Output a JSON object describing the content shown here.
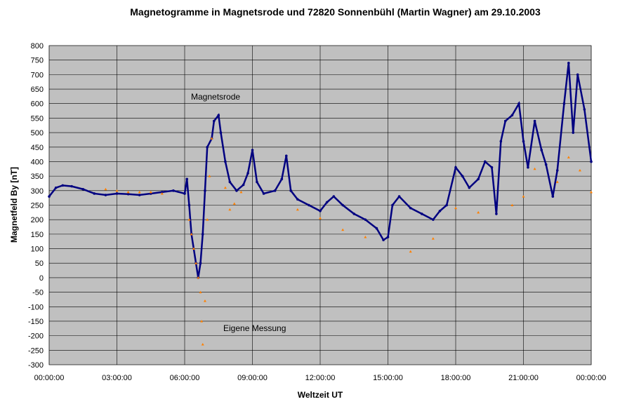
{
  "chart_data": {
    "type": "scatter",
    "title": "Magnetogramme in Magnetsrode und 72820 Sonnenbühl (Martin Wagner) am 29.10.2003",
    "xlabel": "Weltzeit UT",
    "ylabel": "Magnetfeld By [nT]",
    "xlim": [
      0,
      24
    ],
    "ylim": [
      -300,
      800
    ],
    "grid": true,
    "xticks": [
      0,
      3,
      6,
      9,
      12,
      15,
      18,
      21,
      24
    ],
    "xtick_labels": [
      "00:00:00",
      "03:00:00",
      "06:00:00",
      "09:00:00",
      "12:00:00",
      "15:00:00",
      "18:00:00",
      "21:00:00",
      "00:00:00"
    ],
    "yticks": [
      -300,
      -250,
      -200,
      -150,
      -100,
      -50,
      0,
      50,
      100,
      150,
      200,
      250,
      300,
      350,
      400,
      450,
      500,
      550,
      600,
      650,
      700,
      750,
      800
    ],
    "series": [
      {
        "name": "Magnetsrode",
        "color": "#000080",
        "x": [
          0,
          0.3,
          0.6,
          1,
          1.5,
          2,
          2.5,
          3,
          3.5,
          4,
          4.5,
          5,
          5.5,
          6,
          6.1,
          6.2,
          6.3,
          6.5,
          6.6,
          6.7,
          6.8,
          6.9,
          7,
          7.2,
          7.3,
          7.5,
          7.6,
          7.8,
          8,
          8.3,
          8.6,
          8.8,
          9,
          9.2,
          9.5,
          10,
          10.3,
          10.5,
          10.7,
          11,
          11.5,
          12,
          12.3,
          12.6,
          13,
          13.5,
          14,
          14.5,
          14.8,
          15,
          15.2,
          15.5,
          16,
          16.5,
          17,
          17.3,
          17.6,
          18,
          18.3,
          18.6,
          19,
          19.3,
          19.6,
          19.8,
          20,
          20.2,
          20.5,
          20.8,
          21,
          21.2,
          21.5,
          21.8,
          22,
          22.3,
          22.5,
          22.8,
          23,
          23.2,
          23.4,
          23.7,
          24
        ],
        "y": [
          280,
          310,
          318,
          315,
          305,
          290,
          285,
          290,
          288,
          285,
          290,
          295,
          300,
          290,
          340,
          250,
          150,
          50,
          0,
          50,
          150,
          300,
          450,
          480,
          540,
          560,
          500,
          400,
          330,
          300,
          320,
          360,
          440,
          330,
          290,
          300,
          340,
          420,
          300,
          270,
          250,
          230,
          260,
          280,
          250,
          220,
          200,
          170,
          130,
          140,
          250,
          280,
          240,
          220,
          200,
          230,
          250,
          380,
          350,
          310,
          340,
          400,
          380,
          220,
          470,
          540,
          560,
          600,
          470,
          380,
          540,
          440,
          390,
          280,
          370,
          600,
          740,
          500,
          700,
          580,
          400
        ]
      },
      {
        "name": "Eigene Messung",
        "color": "#FF8000",
        "x": [
          2.5,
          3,
          3.5,
          4,
          4.5,
          5,
          6.2,
          6.3,
          6.4,
          6.5,
          6.6,
          6.7,
          6.75,
          6.8,
          6.9,
          7,
          7.1,
          7.2,
          7.8,
          8,
          8.2,
          8.5,
          11,
          12,
          13,
          14,
          16,
          17,
          18,
          19,
          20.5,
          21,
          21.5,
          22.5,
          23,
          23.5,
          24
        ],
        "y": [
          305,
          300,
          295,
          295,
          295,
          290,
          200,
          150,
          100,
          50,
          0,
          -50,
          -150,
          -230,
          -80,
          200,
          350,
          480,
          310,
          235,
          255,
          295,
          235,
          205,
          165,
          140,
          90,
          135,
          240,
          225,
          250,
          280,
          375,
          330,
          415,
          370,
          295
        ]
      }
    ],
    "annotations": [
      "Magnetsrode",
      "Eigene Messung"
    ]
  }
}
